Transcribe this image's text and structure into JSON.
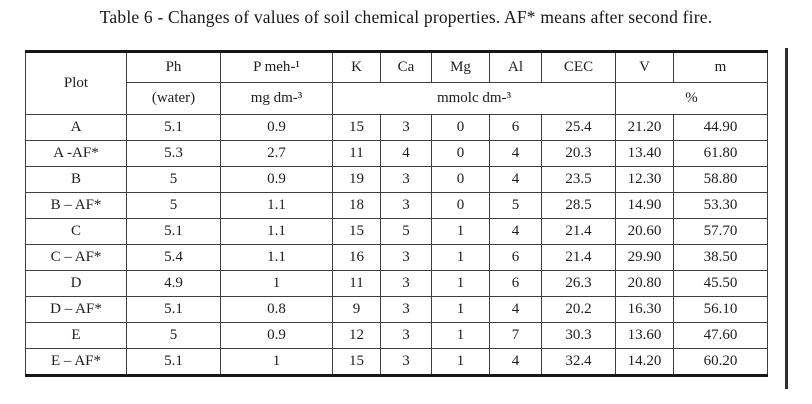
{
  "page": {
    "title": "Table 6 - Changes of values of soil chemical properties. AF* means after second fire."
  },
  "table": {
    "header": {
      "plot": "Plot",
      "top": [
        "Ph",
        "P meh-¹",
        "K",
        "Ca",
        "Mg",
        "Al",
        "CEC",
        "V",
        "m"
      ],
      "units": [
        "(water)",
        "mg dm-³",
        "mmolc dm-³",
        "%"
      ]
    },
    "rows": [
      {
        "plot": "A",
        "values": [
          "5.1",
          "0.9",
          "15",
          "3",
          "0",
          "6",
          "25.4",
          "21.20",
          "44.90"
        ]
      },
      {
        "plot": "A -AF*",
        "values": [
          "5.3",
          "2.7",
          "11",
          "4",
          "0",
          "4",
          "20.3",
          "13.40",
          "61.80"
        ]
      },
      {
        "plot": "B",
        "values": [
          "5",
          "0.9",
          "19",
          "3",
          "0",
          "4",
          "23.5",
          "12.30",
          "58.80"
        ]
      },
      {
        "plot": "B – AF*",
        "values": [
          "5",
          "1.1",
          "18",
          "3",
          "0",
          "5",
          "28.5",
          "14.90",
          "53.30"
        ]
      },
      {
        "plot": "C",
        "values": [
          "5.1",
          "1.1",
          "15",
          "5",
          "1",
          "4",
          "21.4",
          "20.60",
          "57.70"
        ]
      },
      {
        "plot": "C – AF*",
        "values": [
          "5.4",
          "1.1",
          "16",
          "3",
          "1",
          "6",
          "21.4",
          "29.90",
          "38.50"
        ]
      },
      {
        "plot": "D",
        "values": [
          "4.9",
          "1",
          "11",
          "3",
          "1",
          "6",
          "26.3",
          "20.80",
          "45.50"
        ]
      },
      {
        "plot": "D – AF*",
        "values": [
          "5.1",
          "0.8",
          "9",
          "3",
          "1",
          "4",
          "20.2",
          "16.30",
          "56.10"
        ]
      },
      {
        "plot": "E",
        "values": [
          "5",
          "0.9",
          "12",
          "3",
          "1",
          "7",
          "30.3",
          "13.60",
          "47.60"
        ]
      },
      {
        "plot": "E – AF*",
        "values": [
          "5.1",
          "1",
          "15",
          "3",
          "1",
          "4",
          "32.4",
          "14.20",
          "60.20"
        ]
      }
    ]
  }
}
